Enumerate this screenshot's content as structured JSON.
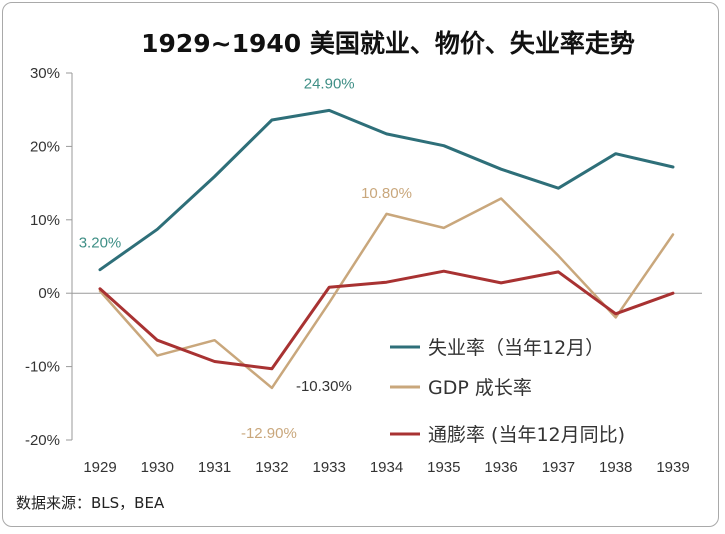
{
  "chart_data": {
    "type": "line",
    "title": "1929~1940 美国就业、物价、失业率走势",
    "x": [
      "1929",
      "1930",
      "1931",
      "1932",
      "1933",
      "1934",
      "1935",
      "1936",
      "1937",
      "1938",
      "1939"
    ],
    "y_ticks": [
      "30%",
      "20%",
      "10%",
      "0%",
      "-10%",
      "-20%"
    ],
    "ylim": [
      -20,
      30
    ],
    "grid": false,
    "legend_position": "lower-right",
    "series": [
      {
        "name": "失业率（当年12月）",
        "color": "#2e6f79",
        "values": [
          3.2,
          8.7,
          15.9,
          23.6,
          24.9,
          21.7,
          20.1,
          16.9,
          14.3,
          19.0,
          17.2
        ]
      },
      {
        "name": "GDP 成长率",
        "color": "#c9a77c",
        "values": [
          0.3,
          -8.5,
          -6.4,
          -12.9,
          -1.3,
          10.8,
          8.9,
          12.9,
          5.1,
          -3.3,
          8.0
        ]
      },
      {
        "name": "通膨率 (当年12月同比)",
        "color": "#a83232",
        "values": [
          0.6,
          -6.4,
          -9.3,
          -10.3,
          0.8,
          1.5,
          3.0,
          1.4,
          2.9,
          -2.8,
          0.0
        ]
      }
    ],
    "annotations": [
      {
        "text": "24.90%",
        "series": 0,
        "index": 4,
        "color": "#3f8f86"
      },
      {
        "text": "3.20%",
        "series": 0,
        "index": 0,
        "color": "#3f8f86"
      },
      {
        "text": "10.80%",
        "series": 1,
        "index": 5,
        "color": "#c9a77c"
      },
      {
        "text": "-12.90%",
        "series": 1,
        "index": 3,
        "color": "#c9a77c"
      },
      {
        "text": "-10.30%",
        "series": 2,
        "index": 3,
        "color": "#333333"
      }
    ]
  },
  "source_text": "数据来源：BLS，BEA"
}
